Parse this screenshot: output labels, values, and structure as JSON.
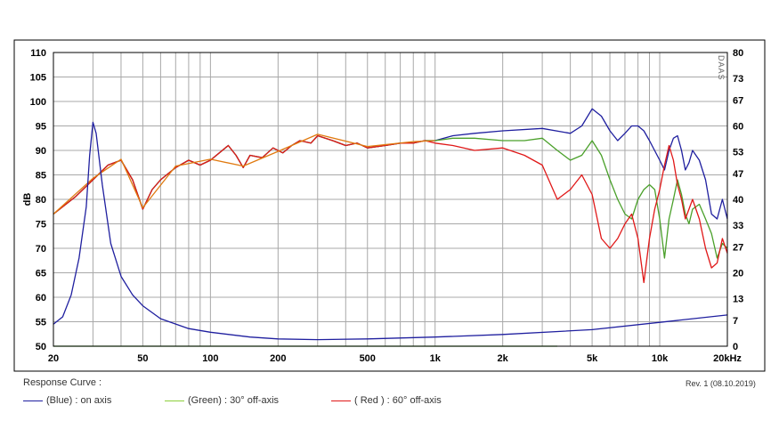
{
  "chart_data": {
    "type": "line",
    "xscale": "log",
    "xlim": [
      20,
      20000
    ],
    "ylim": [
      50,
      110
    ],
    "y2lim": [
      0,
      80
    ],
    "ylabel": "dB",
    "x_ticks": [
      {
        "v": 20,
        "label": "20"
      },
      {
        "v": 50,
        "label": "50"
      },
      {
        "v": 100,
        "label": "100"
      },
      {
        "v": 200,
        "label": "200"
      },
      {
        "v": 500,
        "label": "500"
      },
      {
        "v": 1000,
        "label": "1k"
      },
      {
        "v": 2000,
        "label": "2k"
      },
      {
        "v": 5000,
        "label": "5k"
      },
      {
        "v": 10000,
        "label": "10k"
      },
      {
        "v": 20000,
        "label": "20kHz"
      }
    ],
    "x_gridlines": [
      20,
      30,
      40,
      50,
      60,
      70,
      80,
      90,
      100,
      200,
      300,
      400,
      500,
      600,
      700,
      800,
      900,
      1000,
      2000,
      3000,
      4000,
      5000,
      6000,
      7000,
      8000,
      9000,
      10000,
      20000
    ],
    "y_ticks": [
      {
        "v": 110,
        "label": "110"
      },
      {
        "v": 105,
        "label": "105"
      },
      {
        "v": 100,
        "label": "100"
      },
      {
        "v": 95,
        "label": "95"
      },
      {
        "v": 90,
        "label": "90"
      },
      {
        "v": 85,
        "label": "85"
      },
      {
        "v": 80,
        "label": "80"
      },
      {
        "v": 75,
        "label": "75"
      },
      {
        "v": 70,
        "label": "70"
      },
      {
        "v": 65,
        "label": "65"
      },
      {
        "v": 60,
        "label": "60"
      },
      {
        "v": 55,
        "label": "55"
      },
      {
        "v": 50,
        "label": "50"
      }
    ],
    "y2_ticks": [
      {
        "v": 80,
        "label": "80"
      },
      {
        "v": 73,
        "label": "73"
      },
      {
        "v": 67,
        "label": "67"
      },
      {
        "v": 60,
        "label": "60"
      },
      {
        "v": 53,
        "label": "53"
      },
      {
        "v": 47,
        "label": "47"
      },
      {
        "v": 40,
        "label": "40"
      },
      {
        "v": 33,
        "label": "33"
      },
      {
        "v": 27,
        "label": "27"
      },
      {
        "v": 20,
        "label": "20"
      },
      {
        "v": 13,
        "label": "13"
      },
      {
        "v": 7,
        "label": "7"
      },
      {
        "v": 0,
        "label": "0"
      }
    ],
    "watermark": "DAAS",
    "series": [
      {
        "color": "#1f1f9f",
        "axis": "left",
        "points": [
          [
            20,
            77
          ],
          [
            25,
            80.5
          ],
          [
            30,
            84
          ],
          [
            35,
            87
          ],
          [
            40,
            88
          ],
          [
            45,
            84
          ],
          [
            50,
            78
          ],
          [
            55,
            82
          ],
          [
            60,
            84
          ],
          [
            70,
            86.5
          ],
          [
            80,
            88
          ],
          [
            90,
            87
          ],
          [
            100,
            88
          ],
          [
            120,
            91
          ],
          [
            130,
            89
          ],
          [
            140,
            86.5
          ],
          [
            150,
            89
          ],
          [
            170,
            88.5
          ],
          [
            190,
            90.5
          ],
          [
            210,
            89.5
          ],
          [
            230,
            91
          ],
          [
            250,
            92
          ],
          [
            280,
            91.5
          ],
          [
            300,
            93
          ],
          [
            350,
            92
          ],
          [
            400,
            91
          ],
          [
            450,
            91.5
          ],
          [
            500,
            90.5
          ],
          [
            600,
            91
          ],
          [
            700,
            91.5
          ],
          [
            800,
            91.5
          ],
          [
            900,
            92
          ],
          [
            1000,
            92
          ],
          [
            1200,
            93
          ],
          [
            1500,
            93.5
          ],
          [
            2000,
            94
          ],
          [
            3000,
            94.5
          ],
          [
            4000,
            93.5
          ],
          [
            4500,
            95
          ],
          [
            5000,
            98.5
          ],
          [
            5500,
            97
          ],
          [
            6000,
            94
          ],
          [
            6500,
            92
          ],
          [
            7000,
            93.5
          ],
          [
            7500,
            95
          ],
          [
            8000,
            95
          ],
          [
            8500,
            94
          ],
          [
            9000,
            92
          ],
          [
            10000,
            88
          ],
          [
            10500,
            86
          ],
          [
            11000,
            90
          ],
          [
            11500,
            92.5
          ],
          [
            12000,
            93
          ],
          [
            12500,
            90
          ],
          [
            13000,
            86
          ],
          [
            13500,
            87.5
          ],
          [
            14000,
            90
          ],
          [
            15000,
            88
          ],
          [
            16000,
            84
          ],
          [
            17000,
            77
          ],
          [
            18000,
            76
          ],
          [
            19000,
            80
          ],
          [
            20000,
            76
          ]
        ]
      },
      {
        "color": "#4aa02a",
        "axis": "left",
        "points": [
          [
            20,
            77
          ],
          [
            25,
            80.5
          ],
          [
            30,
            84
          ],
          [
            35,
            87
          ],
          [
            40,
            88
          ],
          [
            45,
            84
          ],
          [
            50,
            78
          ],
          [
            55,
            82
          ],
          [
            60,
            84
          ],
          [
            70,
            86.5
          ],
          [
            80,
            88
          ],
          [
            90,
            87
          ],
          [
            100,
            88
          ],
          [
            120,
            91
          ],
          [
            130,
            89
          ],
          [
            140,
            86.5
          ],
          [
            150,
            89
          ],
          [
            170,
            88.5
          ],
          [
            190,
            90.5
          ],
          [
            210,
            89.5
          ],
          [
            230,
            91
          ],
          [
            250,
            92
          ],
          [
            280,
            91.5
          ],
          [
            300,
            93
          ],
          [
            350,
            92
          ],
          [
            400,
            91
          ],
          [
            450,
            91.5
          ],
          [
            500,
            90.5
          ],
          [
            600,
            91
          ],
          [
            700,
            91.5
          ],
          [
            800,
            91.5
          ],
          [
            900,
            92
          ],
          [
            1000,
            92
          ],
          [
            1200,
            92.5
          ],
          [
            1500,
            92.5
          ],
          [
            2000,
            92
          ],
          [
            2500,
            92
          ],
          [
            3000,
            92.5
          ],
          [
            3500,
            90
          ],
          [
            4000,
            88
          ],
          [
            4500,
            89
          ],
          [
            5000,
            92
          ],
          [
            5500,
            89
          ],
          [
            6000,
            84
          ],
          [
            6500,
            80
          ],
          [
            7000,
            77
          ],
          [
            7500,
            76
          ],
          [
            8000,
            80
          ],
          [
            8500,
            82
          ],
          [
            9000,
            83
          ],
          [
            9500,
            82
          ],
          [
            10000,
            76
          ],
          [
            10500,
            68
          ],
          [
            11000,
            76
          ],
          [
            11500,
            80
          ],
          [
            12000,
            84
          ],
          [
            12500,
            81
          ],
          [
            13000,
            77
          ],
          [
            13500,
            75
          ],
          [
            14000,
            78
          ],
          [
            15000,
            79
          ],
          [
            16000,
            76
          ],
          [
            17000,
            73
          ],
          [
            18000,
            68
          ],
          [
            19000,
            71
          ],
          [
            20000,
            70
          ]
        ]
      },
      {
        "color": "#e01818",
        "axis": "left",
        "points": [
          [
            20,
            77
          ],
          [
            25,
            80.5
          ],
          [
            30,
            84
          ],
          [
            35,
            87
          ],
          [
            40,
            88
          ],
          [
            45,
            84
          ],
          [
            50,
            78
          ],
          [
            55,
            82
          ],
          [
            60,
            84
          ],
          [
            70,
            86.5
          ],
          [
            80,
            88
          ],
          [
            90,
            87
          ],
          [
            100,
            88
          ],
          [
            120,
            91
          ],
          [
            130,
            89
          ],
          [
            140,
            86.5
          ],
          [
            150,
            89
          ],
          [
            170,
            88.5
          ],
          [
            190,
            90.5
          ],
          [
            210,
            89.5
          ],
          [
            230,
            91
          ],
          [
            250,
            92
          ],
          [
            280,
            91.5
          ],
          [
            300,
            93
          ],
          [
            350,
            92
          ],
          [
            400,
            91
          ],
          [
            450,
            91.5
          ],
          [
            500,
            90.5
          ],
          [
            600,
            91
          ],
          [
            700,
            91.5
          ],
          [
            800,
            91.5
          ],
          [
            900,
            92
          ],
          [
            1000,
            91.5
          ],
          [
            1200,
            91
          ],
          [
            1500,
            90
          ],
          [
            2000,
            90.5
          ],
          [
            2500,
            89
          ],
          [
            3000,
            87
          ],
          [
            3500,
            80
          ],
          [
            4000,
            82
          ],
          [
            4500,
            85
          ],
          [
            5000,
            81
          ],
          [
            5500,
            72
          ],
          [
            6000,
            70
          ],
          [
            6500,
            72
          ],
          [
            7000,
            75
          ],
          [
            7500,
            77
          ],
          [
            8000,
            72
          ],
          [
            8500,
            63
          ],
          [
            9000,
            72
          ],
          [
            9500,
            78
          ],
          [
            10000,
            82
          ],
          [
            10500,
            87
          ],
          [
            11000,
            91
          ],
          [
            11500,
            88
          ],
          [
            12000,
            83
          ],
          [
            12500,
            80
          ],
          [
            13000,
            76
          ],
          [
            13500,
            78
          ],
          [
            14000,
            80
          ],
          [
            15000,
            76
          ],
          [
            16000,
            70
          ],
          [
            17000,
            66
          ],
          [
            18000,
            67
          ],
          [
            19000,
            72
          ],
          [
            20000,
            69
          ]
        ]
      },
      {
        "color": "#e07a10",
        "axis": "left",
        "points": [
          [
            20,
            77
          ],
          [
            30,
            84.3
          ],
          [
            40,
            88.2
          ],
          [
            50,
            78.3
          ],
          [
            70,
            86.8
          ],
          [
            100,
            88.2
          ],
          [
            140,
            86.8
          ],
          [
            200,
            89.8
          ],
          [
            300,
            93.3
          ],
          [
            500,
            90.8
          ],
          [
            800,
            91.8
          ],
          [
            1000,
            92
          ]
        ]
      },
      {
        "color": "#1f1f9f",
        "axis": "right",
        "points": [
          [
            20,
            6
          ],
          [
            22,
            8
          ],
          [
            24,
            14
          ],
          [
            26,
            24
          ],
          [
            28,
            38
          ],
          [
            29,
            52
          ],
          [
            30,
            61
          ],
          [
            31,
            58
          ],
          [
            33,
            44
          ],
          [
            36,
            28
          ],
          [
            40,
            19
          ],
          [
            45,
            14
          ],
          [
            50,
            11
          ],
          [
            60,
            7.5
          ],
          [
            80,
            4.8
          ],
          [
            100,
            3.8
          ],
          [
            150,
            2.5
          ],
          [
            200,
            2
          ],
          [
            300,
            1.8
          ],
          [
            500,
            2
          ],
          [
            1000,
            2.5
          ],
          [
            2000,
            3.2
          ],
          [
            5000,
            4.5
          ],
          [
            10000,
            6.5
          ],
          [
            20000,
            8.5
          ]
        ]
      },
      {
        "color": "#4aa02a",
        "axis": "right",
        "points": [
          [
            20,
            0
          ],
          [
            3500,
            0
          ]
        ]
      }
    ],
    "footer": {
      "caption": "Response Curve :",
      "revision": "Rev. 1 (08.10.2019)",
      "legend": [
        {
          "label": "(Blue)  : on axis",
          "color": "#1f1f9f"
        },
        {
          "label": "(Green) : 30° off-axis",
          "color": "#8ccf3a"
        },
        {
          "label": "( Red ) : 60° off-axis",
          "color": "#e01818"
        }
      ]
    }
  }
}
